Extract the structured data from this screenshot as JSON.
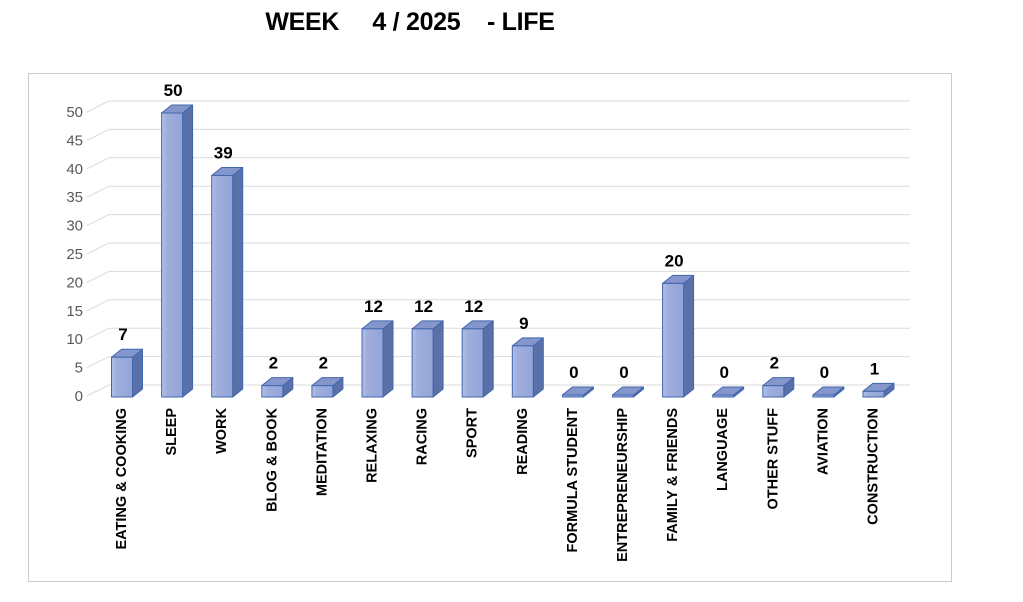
{
  "title": "WEEK     4 / 2025    - LIFE",
  "chart_data": {
    "type": "bar",
    "style": "3d-clustered-excel",
    "title": "WEEK 4 / 2025 - LIFE",
    "categories": [
      "EATING & COOKING",
      "SLEEP",
      "WORK",
      "BLOG & BOOK",
      "MEDITATION",
      "RELAXING",
      "RACING",
      "SPORT",
      "READING",
      "FORMULA STUDENT",
      "ENTREPRENEURSHIP",
      "FAMILY & FRIENDS",
      "LANGUAGE",
      "OTHER STUFF",
      "AVIATION",
      "CONSTRUCTION"
    ],
    "values": [
      7,
      50,
      39,
      2,
      2,
      12,
      12,
      12,
      9,
      0,
      0,
      20,
      0,
      2,
      0,
      1
    ],
    "xlabel": "",
    "ylabel": "",
    "ylim": [
      0,
      50
    ],
    "yticks": [
      0,
      5,
      10,
      15,
      20,
      25,
      30,
      35,
      40,
      45,
      50
    ],
    "grid": true,
    "legend": false,
    "data_labels": true,
    "colors": {
      "bar_front": "#9FAEDC",
      "bar_front_light": "#B3BFE8",
      "bar_side": "#5A70A9",
      "bar_top": "#8496CB",
      "bar_outline": "#4066AE",
      "gridline": "#DBDBDB",
      "axis_text": "#595959",
      "value_text": "#000000",
      "category_text": "#000000",
      "chart_border": "#CBCBCB",
      "background": "#FFFFFF"
    }
  }
}
